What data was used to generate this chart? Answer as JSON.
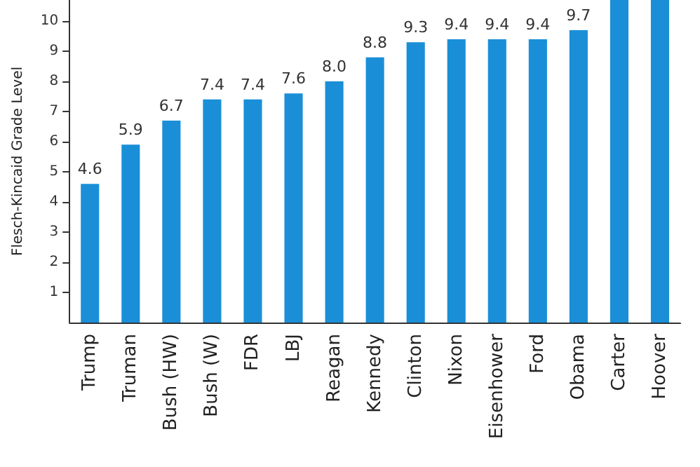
{
  "chart_data": {
    "type": "bar",
    "ylabel": "Flesch-Kincaid Grade Level",
    "categories": [
      "Trump",
      "Truman",
      "Bush (HW)",
      "Bush (W)",
      "FDR",
      "LBJ",
      "Reagan",
      "Kennedy",
      "Clinton",
      "Nixon",
      "Eisenhower",
      "Ford",
      "Obama",
      "Carter",
      "Hoover"
    ],
    "values": [
      4.6,
      5.9,
      6.7,
      7.4,
      7.4,
      7.6,
      8.0,
      8.8,
      9.3,
      9.4,
      9.4,
      9.4,
      9.7,
      10.7,
      10.7
    ],
    "value_labels": [
      "4.6",
      "5.9",
      "6.7",
      "7.4",
      "7.4",
      "7.6",
      "8.0",
      "8.8",
      "9.3",
      "9.4",
      "9.4",
      "9.4",
      "9.7",
      null,
      null
    ],
    "color": "#1a8fd8",
    "ylim": [
      0,
      10.7
    ],
    "yticks": [
      1,
      2,
      3,
      4,
      5,
      6,
      7,
      8,
      9,
      10
    ],
    "grid": false
  }
}
